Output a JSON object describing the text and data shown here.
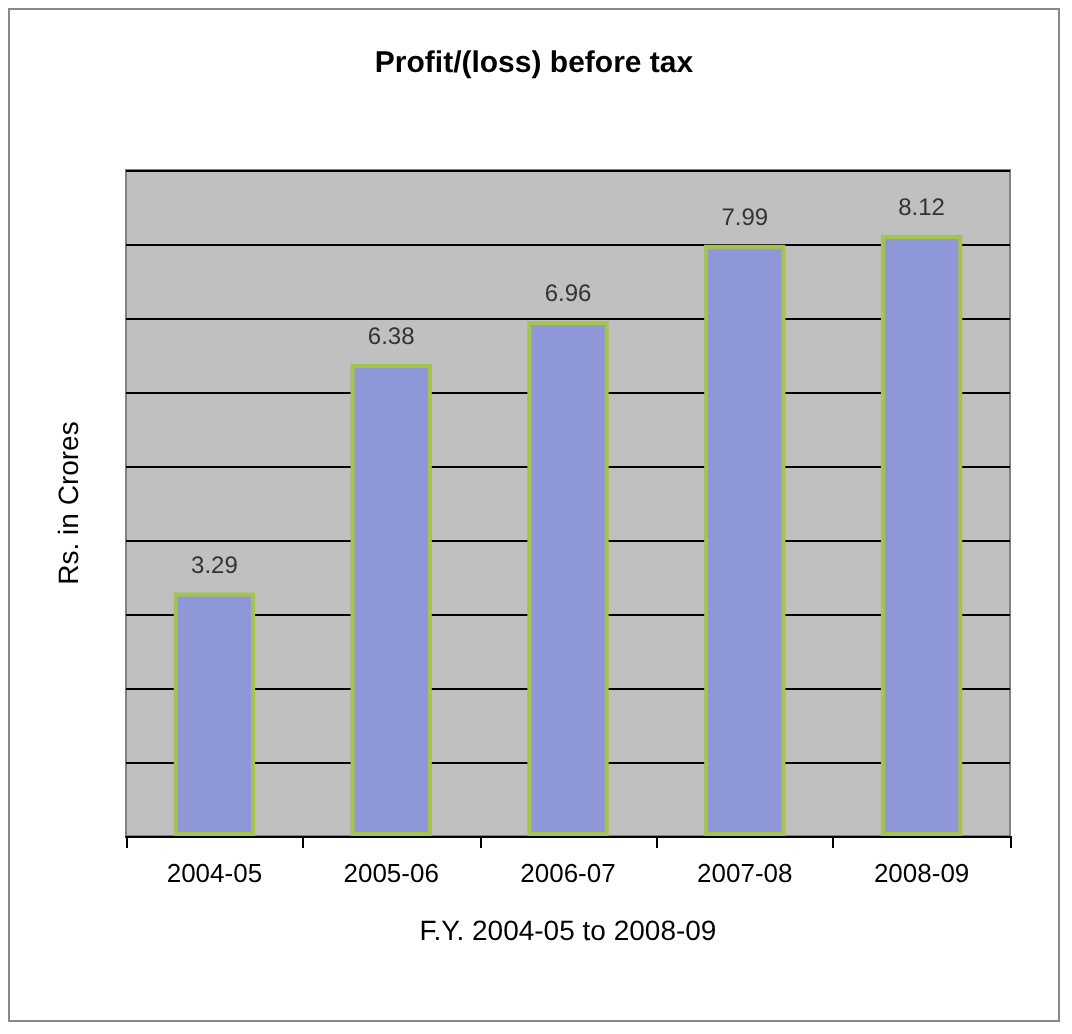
{
  "chart_data": {
    "type": "bar",
    "title": "Profit/(loss) before tax",
    "xlabel": "F.Y. 2004-05 to 2008-09",
    "ylabel": "Rs. in Crores",
    "categories": [
      "2004-05",
      "2005-06",
      "2006-07",
      "2007-08",
      "2008-09"
    ],
    "values": [
      3.29,
      6.38,
      6.96,
      7.99,
      8.12
    ],
    "color": "#8e98d8",
    "ylim": [
      0,
      9
    ],
    "yticks": [
      {
        "value": 0,
        "label": null
      },
      {
        "value": 1,
        "label": null
      },
      {
        "value": 2,
        "label": null
      },
      {
        "value": 3,
        "label": null
      },
      {
        "value": 4,
        "label": null
      },
      {
        "value": 5,
        "label": null
      },
      {
        "value": 6,
        "label": null
      },
      {
        "value": 7,
        "label": null
      },
      {
        "value": 8,
        "label": null
      },
      {
        "value": 9,
        "label": null
      }
    ],
    "tick_labels": "x",
    "grid": "y",
    "data_labels": true
  }
}
